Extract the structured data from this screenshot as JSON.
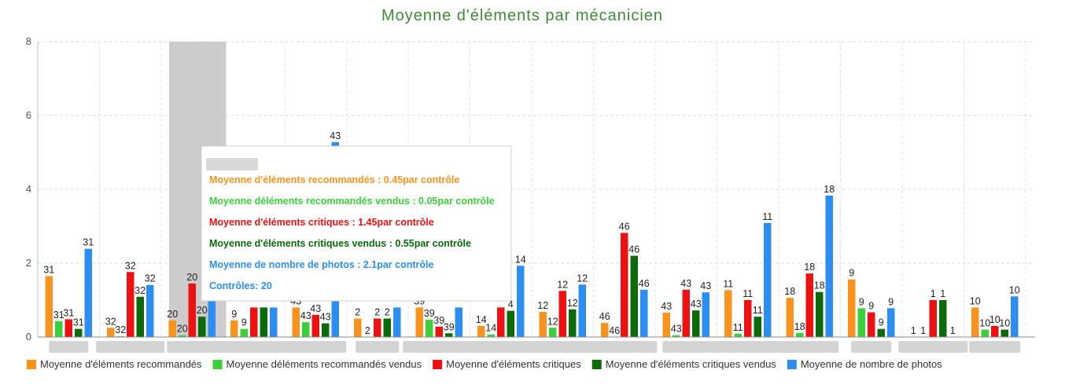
{
  "chart_data": {
    "type": "bar",
    "title": "Moyenne d'éléments par mécanicien",
    "ylim": [
      0,
      8
    ],
    "yticks": [
      0,
      2,
      4,
      6,
      8
    ],
    "grid": true,
    "legend_position": "bottom",
    "category_count": 16,
    "highlighted_category_index": 2,
    "series": [
      {
        "name": "Moyenne d'éléments recommandés",
        "color": "#f7931e",
        "values": [
          1.65,
          0.25,
          0.45,
          0.45,
          0.8,
          0.5,
          0.8,
          0.3,
          0.68,
          0.38,
          0.66,
          1.27,
          1.06,
          1.56,
          0,
          0.8
        ],
        "labels": [
          "31",
          "32",
          "20",
          "9",
          "43",
          "2",
          "39",
          "14",
          "12",
          "46",
          "43",
          "11",
          "18",
          "9",
          "1",
          "10"
        ]
      },
      {
        "name": "Moyenne déléments recommandés vendus",
        "color": "#3ccf3c",
        "values": [
          0.43,
          0.02,
          0.05,
          0.22,
          0.4,
          0,
          0.47,
          0.07,
          0.25,
          0,
          0.05,
          0.09,
          0.11,
          0.78,
          0,
          0.2
        ],
        "labels": [
          "31",
          "32",
          "20",
          "9",
          "43",
          "2",
          "39",
          "14",
          "12",
          "46",
          "43",
          "11",
          "18",
          "9",
          "1",
          "10"
        ]
      },
      {
        "name": "Moyenne d'éléments critiques",
        "color": "#ee1111",
        "values": [
          0.48,
          1.76,
          1.45,
          0.8,
          0.6,
          0.5,
          0.28,
          0.8,
          1.25,
          2.82,
          1.28,
          1.0,
          1.72,
          0.67,
          1.0,
          0.3
        ],
        "labels": [
          "31",
          "32",
          "20",
          "",
          "43",
          "2",
          "39",
          "",
          "12",
          "46",
          "43",
          "11",
          "18",
          "9",
          "1",
          "10"
        ]
      },
      {
        "name": "Moyenne d'éléments critiques vendus",
        "color": "#0b6b0b",
        "values": [
          0.22,
          1.09,
          0.55,
          0.8,
          0.37,
          0.5,
          0.1,
          0.71,
          0.75,
          2.2,
          0.72,
          0.55,
          1.22,
          0.22,
          1.0,
          0.2
        ],
        "labels": [
          "31",
          "32",
          "20",
          "",
          "43",
          "2",
          "39",
          "4",
          "12",
          "46",
          "43",
          "11",
          "18",
          "9",
          "1",
          "10"
        ]
      },
      {
        "name": "Moyenne de nombre de photos",
        "color": "#2b8ef0",
        "values": [
          2.39,
          1.41,
          2.1,
          0.8,
          5.28,
          0.8,
          0.8,
          1.93,
          1.42,
          1.28,
          1.21,
          3.09,
          3.83,
          0.78,
          0,
          1.1
        ],
        "labels": [
          "31",
          "32",
          "",
          "",
          "43",
          "",
          "",
          "14",
          "12",
          "46",
          "43",
          "11",
          "18",
          "9",
          "1",
          "10"
        ]
      }
    ]
  },
  "tooltip": {
    "lines": [
      {
        "text": "Moyenne d'éléments recommandés : 0.45par contrôle",
        "color": "#f7931e"
      },
      {
        "text": "Moyenne déléments recommandés vendus : 0.05par contrôle",
        "color": "#3ccf3c"
      },
      {
        "text": "Moyenne d'éléments critiques : 1.45par contrôle",
        "color": "#ee1111"
      },
      {
        "text": "Moyenne d'éléments critiques vendus : 0.55par contrôle",
        "color": "#0b6b0b"
      },
      {
        "text": "Moyenne de nombre de photos : 2.1par contrôle",
        "color": "#2b8ef0"
      },
      {
        "text": "Contrôles: 20",
        "color": "#2b8ef0"
      }
    ]
  }
}
